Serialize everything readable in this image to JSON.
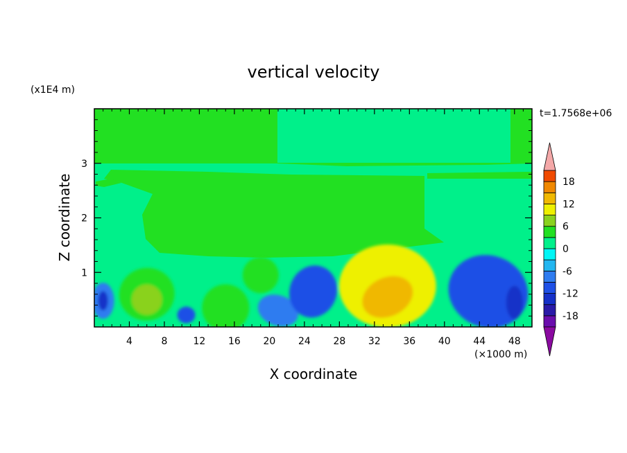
{
  "chart_data": {
    "type": "heatmap",
    "title": "vertical velocity",
    "xlabel": "X coordinate",
    "ylabel": "Z coordinate",
    "x_unit_label": "(×1000 m)",
    "y_unit_label": "(x1E4 m)",
    "time_label": "t=1.7568e+06",
    "xlim": [
      0,
      50
    ],
    "ylim": [
      0,
      4
    ],
    "x_ticks": [
      4,
      8,
      12,
      16,
      20,
      24,
      28,
      32,
      36,
      40,
      44,
      48
    ],
    "y_ticks": [
      1,
      2,
      3
    ],
    "colorbar": {
      "levels": [
        -21,
        -18,
        -15,
        -12,
        -9,
        -6,
        -3,
        0,
        3,
        6,
        9,
        12,
        15,
        18,
        21
      ],
      "tick_labels": [
        -18,
        -12,
        -6,
        0,
        6,
        12,
        18
      ],
      "colors": [
        "#6a0dad",
        "#2a1aa8",
        "#1530c8",
        "#1e50e6",
        "#2f7cf0",
        "#22b6f0",
        "#00f6f6",
        "#00f08a",
        "#22e022",
        "#8ad21e",
        "#eef000",
        "#f0b800",
        "#f08800",
        "#f04a00",
        "#e61e1e"
      ],
      "under_color": "#8a0aa0",
      "over_color": "#f4a8a8"
    },
    "features": [
      {
        "x": 1,
        "z": 0.48,
        "w": -8
      },
      {
        "x": 1,
        "z": 0.48,
        "w": -13
      },
      {
        "x": 6,
        "z": 0.6,
        "w": 5
      },
      {
        "x": 6,
        "z": 0.5,
        "w": 7
      },
      {
        "x": 10.5,
        "z": 0.22,
        "w": -10
      },
      {
        "x": 15,
        "z": 0.35,
        "w": 5
      },
      {
        "x": 19,
        "z": 0.95,
        "w": 5
      },
      {
        "x": 21,
        "z": 0.3,
        "w": -9
      },
      {
        "x": 25,
        "z": 0.65,
        "w": -10
      },
      {
        "x": 33.5,
        "z": 0.75,
        "w": 9
      },
      {
        "x": 33.5,
        "z": 0.55,
        "w": 14
      },
      {
        "x": 45,
        "z": 0.65,
        "w": -12
      },
      {
        "x": 48,
        "z": 0.45,
        "w": -13
      }
    ]
  }
}
